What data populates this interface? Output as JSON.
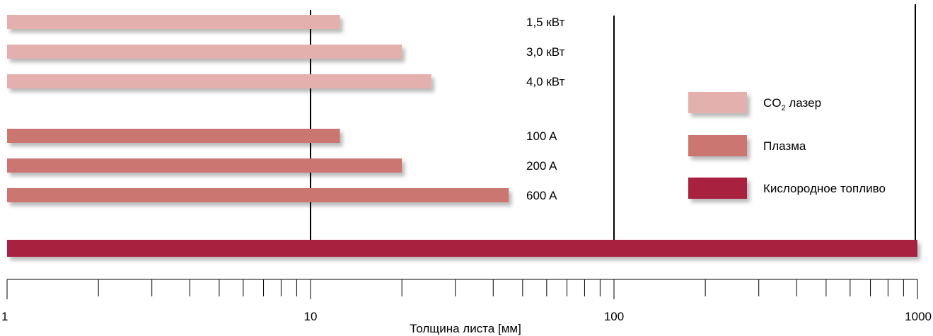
{
  "chart_data": {
    "type": "bar",
    "orientation": "horizontal",
    "title": "",
    "xlabel": "Толщина листа [мм]",
    "ylabel": "",
    "x_scale": "log",
    "xlim": [
      1,
      1000
    ],
    "x_ticks": [
      "1",
      "10",
      "100",
      "1000"
    ],
    "grid": "major vertical lines at 10, 100, 1000",
    "legend_position": "right",
    "series": [
      {
        "name": "CO2 лазер",
        "legend_text": "CO",
        "legend_subscript": "2",
        "legend_suffix": " лазер",
        "color": "#e3b0ae",
        "categories": [
          "1,5 кВт",
          "3,0 кВт",
          "4,0 кВт"
        ],
        "values": [
          12.5,
          20,
          25
        ]
      },
      {
        "name": "Плазма",
        "legend_text": "Плазма",
        "color": "#cc7672",
        "categories": [
          "100 A",
          "200 A",
          "600 A"
        ],
        "values": [
          12.5,
          20,
          45
        ]
      },
      {
        "name": "Кислородное топливо",
        "legend_text": "Кислородное топливо",
        "color": "#a8213f",
        "categories": [
          ""
        ],
        "values": [
          1000
        ]
      }
    ]
  }
}
